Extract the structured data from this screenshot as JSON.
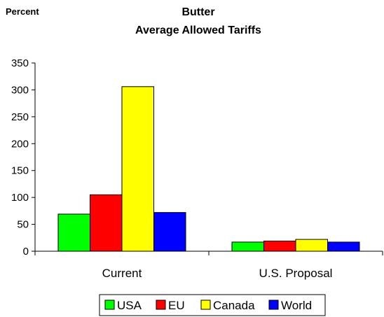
{
  "chart_data": {
    "type": "bar",
    "title_line1": "Butter",
    "title_line2": "Average Allowed Tariffs",
    "ylabel": "Percent",
    "xlabel": "",
    "ylim": [
      0,
      350
    ],
    "yticks": [
      0,
      50,
      100,
      150,
      200,
      250,
      300,
      350
    ],
    "categories": [
      "Current",
      "U.S. Proposal"
    ],
    "series": [
      {
        "name": "USA",
        "color": "#00ff00",
        "values": [
          69,
          17
        ]
      },
      {
        "name": "EU",
        "color": "#ff0000",
        "values": [
          105,
          19
        ]
      },
      {
        "name": "Canada",
        "color": "#ffff00",
        "values": [
          306,
          22
        ]
      },
      {
        "name": "World",
        "color": "#0000ff",
        "values": [
          72,
          17
        ]
      }
    ],
    "grid": false,
    "legend_position": "bottom"
  }
}
